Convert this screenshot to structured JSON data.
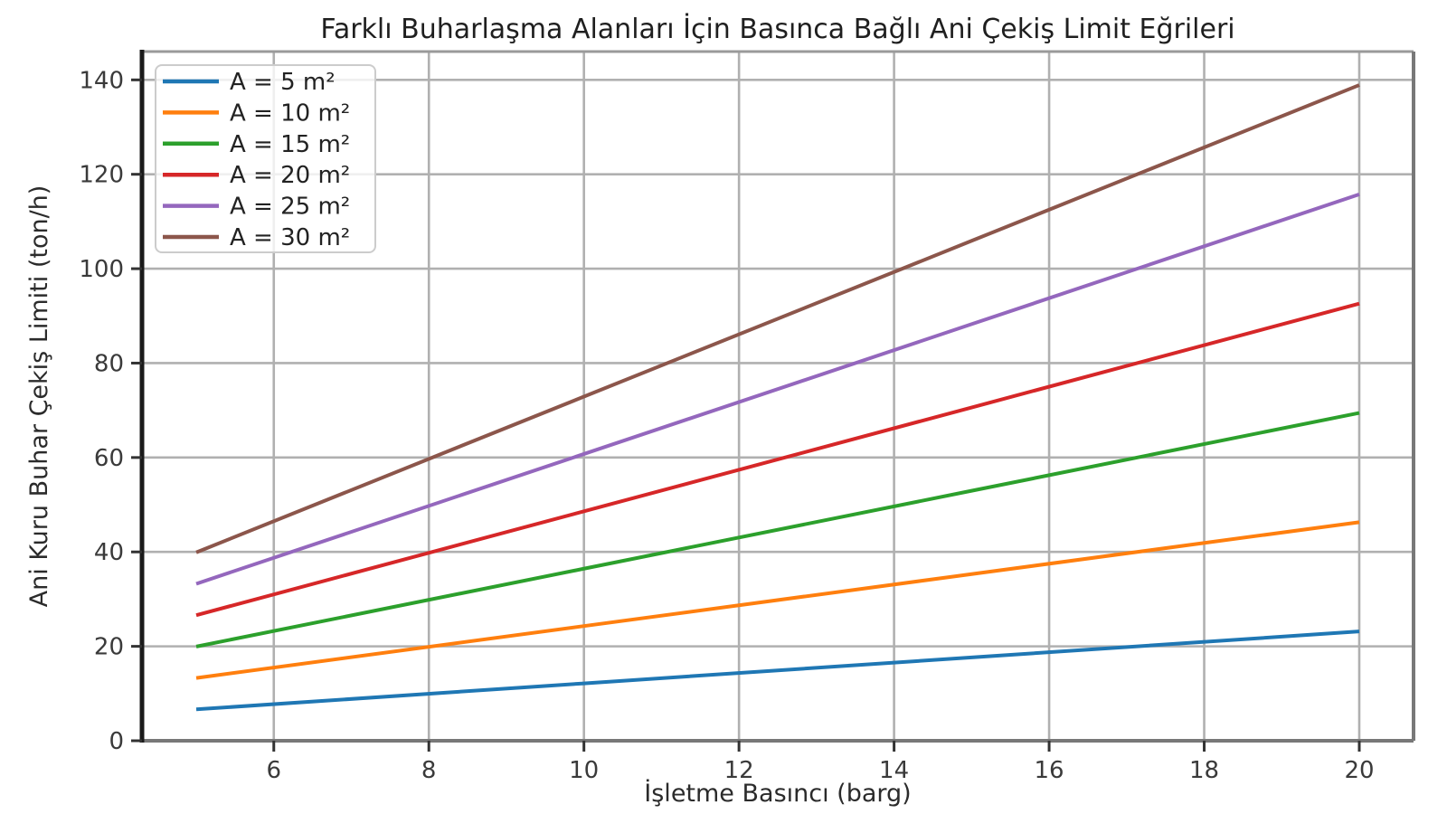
{
  "chart_data": {
    "type": "line",
    "title": "Farklı Buharlaşma Alanları İçin Basınca Bağlı Ani Çekiş Limit Eğrileri",
    "xlabel": "İşletme Basıncı (barg)",
    "ylabel": "Ani Kuru Buhar Çekiş Limiti (ton/h)",
    "x": [
      5,
      10,
      15,
      20
    ],
    "series": [
      {
        "name": "A = 5 m²",
        "color": "#1f77b4",
        "values": [
          6.65,
          12.15,
          17.65,
          23.15
        ]
      },
      {
        "name": "A = 10 m²",
        "color": "#ff7f0e",
        "values": [
          13.3,
          24.3,
          35.3,
          46.3
        ]
      },
      {
        "name": "A = 15 m²",
        "color": "#2ca02c",
        "values": [
          19.95,
          36.45,
          52.95,
          69.45
        ]
      },
      {
        "name": "A = 20 m²",
        "color": "#d62728",
        "values": [
          26.6,
          48.6,
          70.6,
          92.6
        ]
      },
      {
        "name": "A = 25 m²",
        "color": "#9467bd",
        "values": [
          33.25,
          60.75,
          88.25,
          115.75
        ]
      },
      {
        "name": "A = 30 m²",
        "color": "#8c564b",
        "values": [
          39.9,
          72.9,
          105.9,
          138.9
        ]
      }
    ],
    "xticks": [
      6,
      8,
      10,
      12,
      14,
      16,
      18,
      20
    ],
    "yticks": [
      0,
      20,
      40,
      60,
      80,
      100,
      120,
      140
    ],
    "xlim": [
      4.3,
      20.7
    ],
    "ylim": [
      0,
      146
    ],
    "grid": true,
    "legend_position": "upper left",
    "grid_color": "#b0b0b0",
    "frame_color": "#787878",
    "left_spine_color": "#1a1a1a",
    "tick_color": "#333333",
    "legend_border_color": "#cccccc"
  }
}
